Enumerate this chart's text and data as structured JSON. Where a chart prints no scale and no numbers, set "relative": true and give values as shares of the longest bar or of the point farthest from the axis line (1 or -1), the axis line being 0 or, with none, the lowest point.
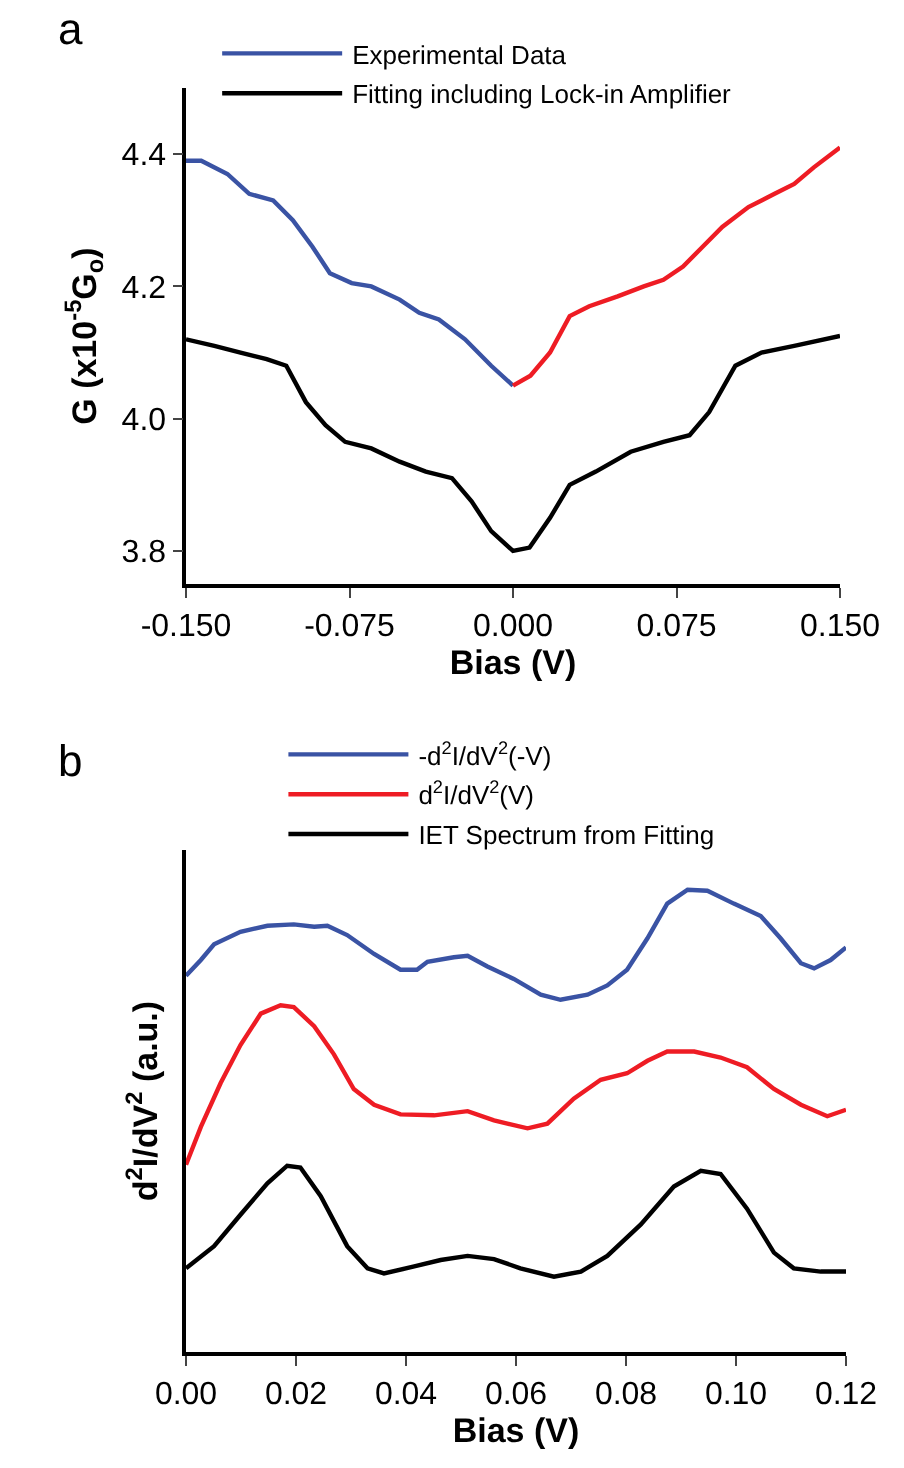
{
  "chart_data": [
    {
      "type": "line",
      "xlabel": "Bias (V)",
      "ylabel": "G (x10$^{-5}$G$_{o}$)",
      "annotations": [
        "a"
      ],
      "xlim": [
        -0.15,
        0.15
      ],
      "xticks": [
        {
          "value": -0.15,
          "label": "-0.150"
        },
        {
          "value": -0.075,
          "label": "-0.075"
        },
        {
          "value": 0,
          "label": "0.000"
        },
        {
          "value": 0.075,
          "label": "0.075"
        },
        {
          "value": 0.15,
          "label": "0.150"
        }
      ],
      "ylim": [
        3.75,
        4.5
      ],
      "yticks": [
        {
          "value": 3.8,
          "label": "3.8"
        },
        {
          "value": 4.0,
          "label": "4.0"
        },
        {
          "value": 4.2,
          "label": "4.2"
        },
        {
          "value": 4.4,
          "label": "4.4"
        }
      ],
      "grid": false,
      "legend": "top",
      "series": [
        {
          "name": "Experimental Data",
          "color": "#3a53a4",
          "x": [
            -0.15,
            -0.143,
            -0.131,
            -0.121,
            -0.11,
            -0.101,
            -0.092,
            -0.084,
            -0.074,
            -0.065,
            -0.052,
            -0.043,
            -0.034,
            -0.022,
            -0.01,
            0
          ],
          "values": [
            4.39,
            4.39,
            4.37,
            4.34,
            4.33,
            4.3,
            4.26,
            4.22,
            4.205,
            4.2,
            4.18,
            4.16,
            4.15,
            4.12,
            4.08,
            4.05
          ]
        },
        {
          "color": "#ee1c24",
          "x": [
            0,
            0.008,
            0.017,
            0.026,
            0.035,
            0.048,
            0.06,
            0.069,
            0.078,
            0.087,
            0.096,
            0.108,
            0.12,
            0.129,
            0.138,
            0.15
          ],
          "values": [
            4.05,
            4.065,
            4.1,
            4.155,
            4.17,
            4.185,
            4.2,
            4.21,
            4.23,
            4.26,
            4.29,
            4.32,
            4.34,
            4.355,
            4.38,
            4.41
          ]
        },
        {
          "name": "Fitting including Lock-in Amplifier",
          "color": "#000000",
          "x": [
            -0.15,
            -0.137,
            -0.125,
            -0.113,
            -0.104,
            -0.095,
            -0.086,
            -0.077,
            -0.065,
            -0.052,
            -0.04,
            -0.028,
            -0.019,
            -0.01,
            0,
            0.0076,
            0.017,
            0.026,
            0.038,
            0.054,
            0.069,
            0.081,
            0.09,
            0.102,
            0.114,
            0.129,
            0.15
          ],
          "values": [
            4.12,
            4.11,
            4.1,
            4.09,
            4.08,
            4.025,
            3.99,
            3.965,
            3.955,
            3.935,
            3.92,
            3.91,
            3.875,
            3.83,
            3.8,
            3.805,
            3.85,
            3.9,
            3.92,
            3.95,
            3.965,
            3.975,
            4.01,
            4.08,
            4.1,
            4.11,
            4.125
          ]
        }
      ]
    },
    {
      "type": "line",
      "xlabel": "Bias (V)",
      "ylabel": "d$^{2}$I/dV$^{2}$ (a.u.)",
      "annotations": [
        "b"
      ],
      "relative": true,
      "xlim": [
        0,
        0.12
      ],
      "xticks": [
        {
          "value": 0,
          "label": "0.00"
        },
        {
          "value": 0.02,
          "label": "0.02"
        },
        {
          "value": 0.04,
          "label": "0.04"
        },
        {
          "value": 0.06,
          "label": "0.06"
        },
        {
          "value": 0.08,
          "label": "0.08"
        },
        {
          "value": 0.1,
          "label": "0.10"
        },
        {
          "value": 0.12,
          "label": "0.12"
        }
      ],
      "grid": false,
      "legend": "top",
      "series": [
        {
          "name": "-d$^{2}$I/dV$^{2}$(-V)",
          "color": "#3a53a4",
          "x": [
            0,
            0.0027,
            0.0051,
            0.0099,
            0.0148,
            0.0196,
            0.0233,
            0.0257,
            0.0293,
            0.0342,
            0.039,
            0.042,
            0.0439,
            0.0487,
            0.0512,
            0.0548,
            0.0596,
            0.0645,
            0.0681,
            0.073,
            0.0766,
            0.0802,
            0.0839,
            0.0875,
            0.0912,
            0.0948,
            0.0996,
            0.1045,
            0.1081,
            0.1118,
            0.1142,
            0.1172,
            0.12
          ],
          "values": [
            0.814,
            0.848,
            0.882,
            0.909,
            0.922,
            0.925,
            0.92,
            0.922,
            0.902,
            0.861,
            0.827,
            0.827,
            0.844,
            0.854,
            0.857,
            0.834,
            0.807,
            0.773,
            0.762,
            0.773,
            0.793,
            0.827,
            0.895,
            0.97,
            1,
            0.998,
            0.97,
            0.943,
            0.895,
            0.841,
            0.83,
            0.848,
            0.875
          ]
        },
        {
          "name": "d$^{2}$I/dV$^{2}$(V)",
          "color": "#ee1c24",
          "x": [
            0,
            0.0027,
            0.0063,
            0.0099,
            0.0136,
            0.0172,
            0.0196,
            0.0233,
            0.0269,
            0.0305,
            0.0342,
            0.039,
            0.0451,
            0.0512,
            0.056,
            0.0621,
            0.0657,
            0.0705,
            0.0754,
            0.0802,
            0.0839,
            0.0875,
            0.0924,
            0.0972,
            0.102,
            0.1069,
            0.1118,
            0.1166,
            0.12
          ],
          "values": [
            0.405,
            0.487,
            0.582,
            0.664,
            0.732,
            0.75,
            0.746,
            0.705,
            0.644,
            0.569,
            0.535,
            0.514,
            0.512,
            0.521,
            0.501,
            0.484,
            0.494,
            0.548,
            0.589,
            0.603,
            0.63,
            0.65,
            0.65,
            0.637,
            0.616,
            0.569,
            0.535,
            0.51,
            0.524
          ]
        },
        {
          "name": "IET Spectrum from Fitting",
          "color": "#000000",
          "x": [
            0,
            0.0051,
            0.0099,
            0.0148,
            0.0184,
            0.0208,
            0.0245,
            0.0293,
            0.033,
            0.036,
            0.0415,
            0.0463,
            0.0512,
            0.056,
            0.0608,
            0.0669,
            0.0718,
            0.0766,
            0.0827,
            0.0887,
            0.0936,
            0.0972,
            0.102,
            0.1069,
            0.1105,
            0.1154,
            0.12
          ],
          "values": [
            0.181,
            0.229,
            0.297,
            0.365,
            0.403,
            0.399,
            0.337,
            0.229,
            0.181,
            0.17,
            0.185,
            0.199,
            0.208,
            0.201,
            0.181,
            0.163,
            0.174,
            0.208,
            0.276,
            0.358,
            0.392,
            0.385,
            0.31,
            0.215,
            0.181,
            0.174,
            0.174
          ]
        }
      ]
    }
  ]
}
